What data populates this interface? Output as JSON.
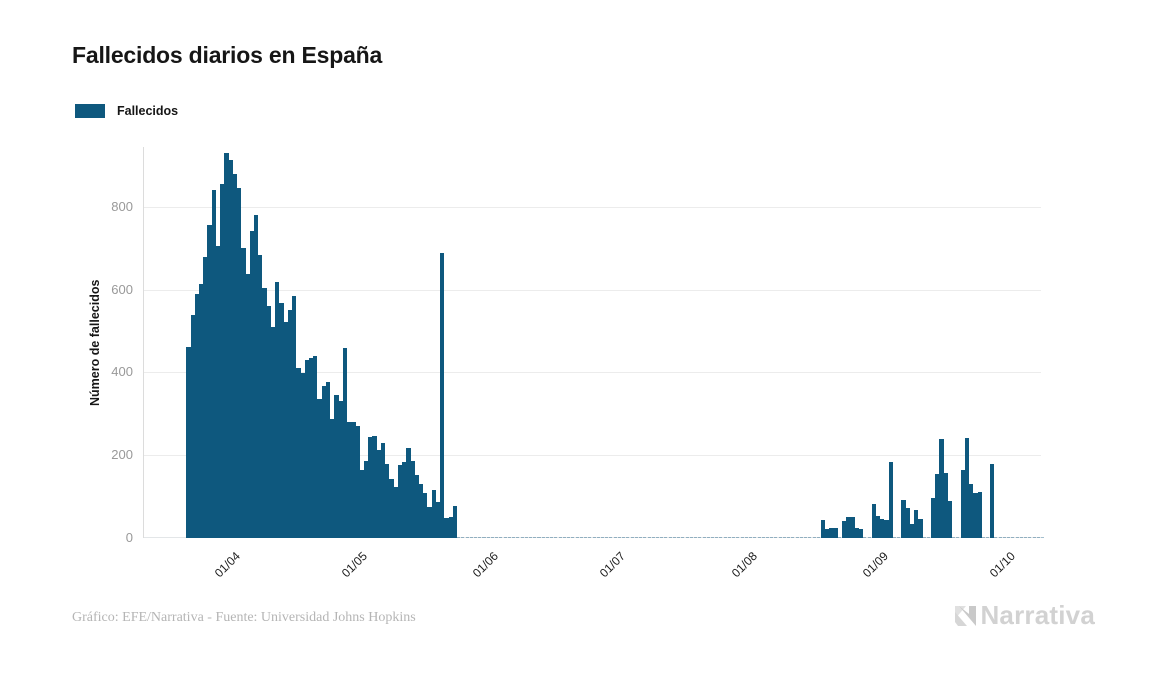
{
  "header": {
    "title": "Fallecidos diarios en España"
  },
  "legend": {
    "label": "Fallecidos",
    "color": "#0e587e"
  },
  "footer": {
    "credit": "Gráfico: EFE/Narrativa - Fuente: Universidad Johns Hopkins",
    "brand": "Narrativa"
  },
  "theme": {
    "bar_color": "#0e587e",
    "grid_color": "#ececec",
    "axis_color": "#dcdcdc",
    "ytick_color": "#999999",
    "xtick_color": "#1c1c1c",
    "footer_color": "#b5b5b5",
    "brand_color": "#d2d2d2",
    "background": "#ffffff"
  },
  "chart_data": {
    "type": "bar",
    "title": "Fallecidos diarios en España",
    "series_name": "Fallecidos",
    "xlabel": "",
    "ylabel": "Número de fallecidos",
    "ylim": [
      0,
      945
    ],
    "y_ticks": [
      0,
      200,
      400,
      600,
      800
    ],
    "grid": "horizontal",
    "legend_position": "top-left",
    "x_domain": [
      "2020-03-13",
      "2020-10-11"
    ],
    "x_ticks": [
      {
        "label": "01/04",
        "date": "2020-04-01"
      },
      {
        "label": "01/05",
        "date": "2020-05-01"
      },
      {
        "label": "01/06",
        "date": "2020-06-01"
      },
      {
        "label": "01/07",
        "date": "2020-07-01"
      },
      {
        "label": "01/08",
        "date": "2020-08-01"
      },
      {
        "label": "01/09",
        "date": "2020-09-01"
      },
      {
        "label": "01/10",
        "date": "2020-10-01"
      }
    ],
    "unlisted_dates_value": 0,
    "points": [
      [
        "2020-03-23",
        462
      ],
      [
        "2020-03-24",
        540
      ],
      [
        "2020-03-25",
        590
      ],
      [
        "2020-03-26",
        615
      ],
      [
        "2020-03-27",
        680
      ],
      [
        "2020-03-28",
        757
      ],
      [
        "2020-03-29",
        840
      ],
      [
        "2020-03-30",
        705
      ],
      [
        "2020-03-31",
        855
      ],
      [
        "2020-04-01",
        930
      ],
      [
        "2020-04-02",
        913
      ],
      [
        "2020-04-03",
        880
      ],
      [
        "2020-04-04",
        845
      ],
      [
        "2020-04-05",
        700
      ],
      [
        "2020-04-06",
        637
      ],
      [
        "2020-04-07",
        743
      ],
      [
        "2020-04-08",
        780
      ],
      [
        "2020-04-09",
        683
      ],
      [
        "2020-04-10",
        605
      ],
      [
        "2020-04-11",
        560
      ],
      [
        "2020-04-12",
        510
      ],
      [
        "2020-04-13",
        619
      ],
      [
        "2020-04-14",
        567
      ],
      [
        "2020-04-15",
        523
      ],
      [
        "2020-04-16",
        551
      ],
      [
        "2020-04-17",
        585
      ],
      [
        "2020-04-18",
        410
      ],
      [
        "2020-04-19",
        399
      ],
      [
        "2020-04-20",
        430
      ],
      [
        "2020-04-21",
        435
      ],
      [
        "2020-04-22",
        440
      ],
      [
        "2020-04-23",
        335
      ],
      [
        "2020-04-24",
        367
      ],
      [
        "2020-04-25",
        378
      ],
      [
        "2020-04-26",
        288
      ],
      [
        "2020-04-27",
        345
      ],
      [
        "2020-04-28",
        330
      ],
      [
        "2020-04-29",
        459
      ],
      [
        "2020-04-30",
        280
      ],
      [
        "2020-05-01",
        281
      ],
      [
        "2020-05-02",
        270
      ],
      [
        "2020-05-03",
        164
      ],
      [
        "2020-05-04",
        185
      ],
      [
        "2020-05-05",
        244
      ],
      [
        "2020-05-06",
        246
      ],
      [
        "2020-05-07",
        213
      ],
      [
        "2020-05-08",
        229
      ],
      [
        "2020-05-09",
        179
      ],
      [
        "2020-05-10",
        143
      ],
      [
        "2020-05-11",
        123
      ],
      [
        "2020-05-12",
        176
      ],
      [
        "2020-05-13",
        184
      ],
      [
        "2020-05-14",
        217
      ],
      [
        "2020-05-15",
        185
      ],
      [
        "2020-05-16",
        152
      ],
      [
        "2020-05-17",
        130
      ],
      [
        "2020-05-18",
        110
      ],
      [
        "2020-05-19",
        76
      ],
      [
        "2020-05-20",
        115
      ],
      [
        "2020-05-21",
        86
      ],
      [
        "2020-05-22",
        688
      ],
      [
        "2020-05-23",
        48
      ],
      [
        "2020-05-24",
        52
      ],
      [
        "2020-05-25",
        78
      ],
      [
        "2020-08-20",
        43
      ],
      [
        "2020-08-21",
        22
      ],
      [
        "2020-08-22",
        25
      ],
      [
        "2020-08-23",
        25
      ],
      [
        "2020-08-25",
        40
      ],
      [
        "2020-08-26",
        52
      ],
      [
        "2020-08-27",
        52
      ],
      [
        "2020-08-28",
        25
      ],
      [
        "2020-08-29",
        22
      ],
      [
        "2020-09-01",
        82
      ],
      [
        "2020-09-02",
        53
      ],
      [
        "2020-09-03",
        46
      ],
      [
        "2020-09-04",
        44
      ],
      [
        "2020-09-05",
        184
      ],
      [
        "2020-09-08",
        92
      ],
      [
        "2020-09-09",
        72
      ],
      [
        "2020-09-10",
        34
      ],
      [
        "2020-09-11",
        67
      ],
      [
        "2020-09-12",
        46
      ],
      [
        "2020-09-15",
        97
      ],
      [
        "2020-09-16",
        155
      ],
      [
        "2020-09-17",
        239
      ],
      [
        "2020-09-18",
        157
      ],
      [
        "2020-09-19",
        89
      ],
      [
        "2020-09-22",
        164
      ],
      [
        "2020-09-23",
        241
      ],
      [
        "2020-09-24",
        130
      ],
      [
        "2020-09-25",
        108
      ],
      [
        "2020-09-26",
        112
      ],
      [
        "2020-09-29",
        179
      ]
    ]
  }
}
